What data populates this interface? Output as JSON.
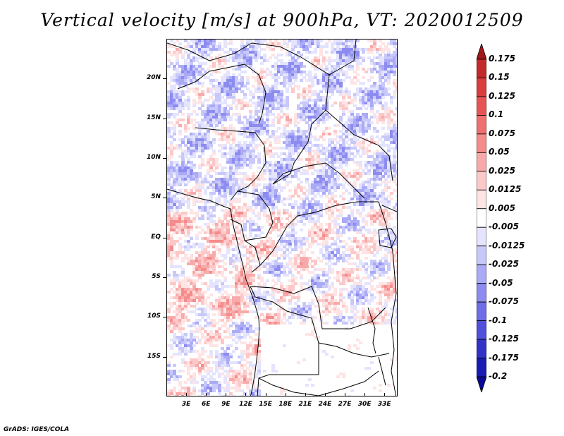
{
  "title": "Vertical velocity [m/s] at 900hPa, VT: 2020012509",
  "footer": "GrADS: IGES/COLA",
  "map": {
    "variable": "Vertical velocity",
    "units": "m/s",
    "level": "900hPa",
    "valid_time": "2020012509",
    "lon_range": [
      0,
      35
    ],
    "lat_range": [
      -20,
      25
    ],
    "lat_ticks": [
      {
        "value": 20,
        "label": "20N"
      },
      {
        "value": 15,
        "label": "15N"
      },
      {
        "value": 10,
        "label": "10N"
      },
      {
        "value": 5,
        "label": "5N"
      },
      {
        "value": 0,
        "label": "EQ"
      },
      {
        "value": -5,
        "label": "5S"
      },
      {
        "value": -10,
        "label": "10S"
      },
      {
        "value": -15,
        "label": "15S"
      }
    ],
    "lon_ticks": [
      {
        "value": 3,
        "label": "3E"
      },
      {
        "value": 6,
        "label": "6E"
      },
      {
        "value": 9,
        "label": "9E"
      },
      {
        "value": 12,
        "label": "12E"
      },
      {
        "value": 15,
        "label": "15E"
      },
      {
        "value": 18,
        "label": "18E"
      },
      {
        "value": 21,
        "label": "21E"
      },
      {
        "value": 24,
        "label": "24E"
      },
      {
        "value": 27,
        "label": "27E"
      },
      {
        "value": 30,
        "label": "30E"
      },
      {
        "value": 33,
        "label": "33E"
      }
    ]
  },
  "colorbar": {
    "labels": [
      "0.175",
      "0.15",
      "0.125",
      "0.1",
      "0.075",
      "0.05",
      "0.025",
      "0.0125",
      "0.005",
      "-0.005",
      "-0.0125",
      "-0.025",
      "-0.05",
      "-0.075",
      "-0.1",
      "-0.125",
      "-0.175",
      "-0.2"
    ],
    "colors": [
      "#a01818",
      "#c42a2a",
      "#dc3c3c",
      "#e85454",
      "#f07070",
      "#f48c8c",
      "#f8aaaa",
      "#fcc8c8",
      "#fee4e4",
      "#ffffff",
      "#e4e4fe",
      "#c8c8fa",
      "#aaaaf6",
      "#8c8cf0",
      "#6e6ee6",
      "#5050dc",
      "#3232c8",
      "#1a1ab4",
      "#0a0a96"
    ]
  }
}
